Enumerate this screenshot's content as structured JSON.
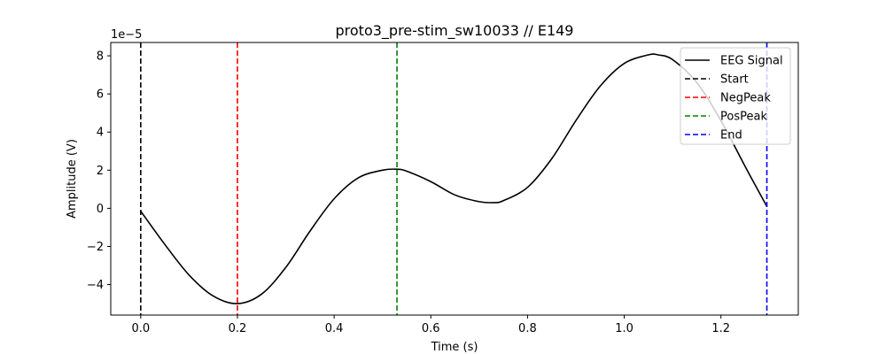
{
  "chart_data": {
    "type": "line",
    "title": "proto3_pre-stim_sw10033 // E149",
    "xlabel": "Time (s)",
    "ylabel": "Amplitude (V)",
    "y_offset_text": "1e−5",
    "xlim": [
      -0.062,
      1.36
    ],
    "ylim": [
      -5.6,
      8.7
    ],
    "y_scale_factor": 1e-05,
    "xticks": [
      0.0,
      0.2,
      0.4,
      0.6,
      0.8,
      1.0,
      1.2
    ],
    "xtick_labels": [
      "0.0",
      "0.2",
      "0.4",
      "0.6",
      "0.8",
      "1.0",
      "1.2"
    ],
    "yticks": [
      -4,
      -2,
      0,
      2,
      4,
      6,
      8
    ],
    "ytick_labels": [
      "−4",
      "−2",
      "0",
      "2",
      "4",
      "6",
      "8"
    ],
    "grid": false,
    "legend_position": "top-right",
    "series": [
      {
        "name": "EEG Signal",
        "color": "#000000",
        "style": "solid",
        "x": [
          0.0,
          0.05,
          0.1,
          0.15,
          0.2,
          0.25,
          0.3,
          0.35,
          0.4,
          0.45,
          0.5,
          0.53,
          0.55,
          0.6,
          0.65,
          0.7,
          0.73,
          0.75,
          0.8,
          0.85,
          0.9,
          0.95,
          1.0,
          1.05,
          1.07,
          1.1,
          1.15,
          1.2,
          1.25,
          1.295
        ],
        "y": [
          -0.15,
          -1.9,
          -3.5,
          -4.6,
          -5.0,
          -4.5,
          -3.1,
          -1.2,
          0.5,
          1.6,
          2.0,
          2.05,
          1.95,
          1.4,
          0.7,
          0.35,
          0.3,
          0.4,
          1.1,
          2.6,
          4.6,
          6.4,
          7.6,
          8.05,
          8.05,
          7.8,
          6.6,
          4.6,
          2.2,
          0.1
        ]
      }
    ],
    "vlines": [
      {
        "name": "Start",
        "x": 0.0,
        "color": "#000000"
      },
      {
        "name": "NegPeak",
        "x": 0.2,
        "color": "#ff0000"
      },
      {
        "name": "PosPeak",
        "x": 0.53,
        "color": "#008000"
      },
      {
        "name": "End",
        "x": 1.295,
        "color": "#0000ff"
      }
    ]
  }
}
